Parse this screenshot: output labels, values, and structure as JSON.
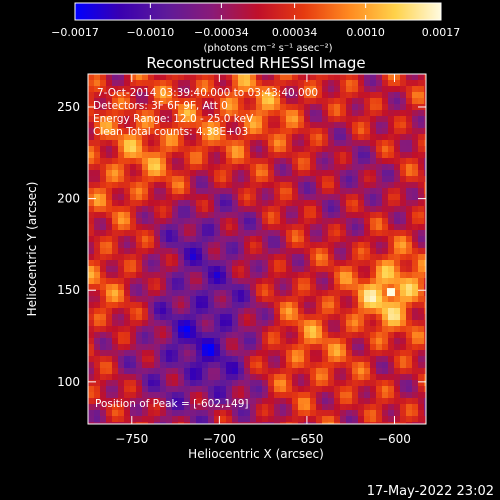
{
  "chart_data": {
    "type": "heatmap",
    "title": "Reconstructed RHESSI Image",
    "xlabel": "Heliocentric X (arcsec)",
    "ylabel": "Heliocentric Y (arcsec)",
    "xlim": [
      -775,
      -582
    ],
    "ylim": [
      77,
      268
    ],
    "x_ticks": [
      -750,
      -700,
      -650,
      -600
    ],
    "y_ticks": [
      100,
      150,
      200,
      250
    ],
    "x_tick_labels": [
      "−750",
      "−700",
      "−650",
      "−600"
    ],
    "y_tick_labels": [
      "100",
      "150",
      "200",
      "250"
    ],
    "annotations": [
      "7-Oct-2014 03:39:40.000 to 03:43:40.000",
      "Detectors: 3F 6F 9F, Att 0",
      "Energy Range: 12.0 - 25.0 keV",
      "Clean     Total counts: 4.38E+03"
    ],
    "peak_label": "Position of Peak = [-602,149]",
    "peak_position": [
      -602,
      149
    ],
    "colorbar": {
      "range": [
        -0.0017,
        0.0017
      ],
      "tick_values": [
        -0.0017,
        -0.001,
        -0.00034,
        0.00034,
        0.001,
        0.0017
      ],
      "tick_labels": [
        "−0.0017",
        "−0.0010",
        "−0.00034",
        "0.00034",
        "0.0010",
        "0.0017"
      ],
      "units_text": "(photons cm⁻² s⁻¹ asec⁻²)"
    },
    "colormap": [
      "#0000ff",
      "#3a00b0",
      "#5e1a9a",
      "#8a1a78",
      "#c0102a",
      "#e63a10",
      "#ff8a20",
      "#ffd24a",
      "#fffbe0"
    ]
  },
  "footer": {
    "timestamp": "17-May-2022 23:02"
  }
}
